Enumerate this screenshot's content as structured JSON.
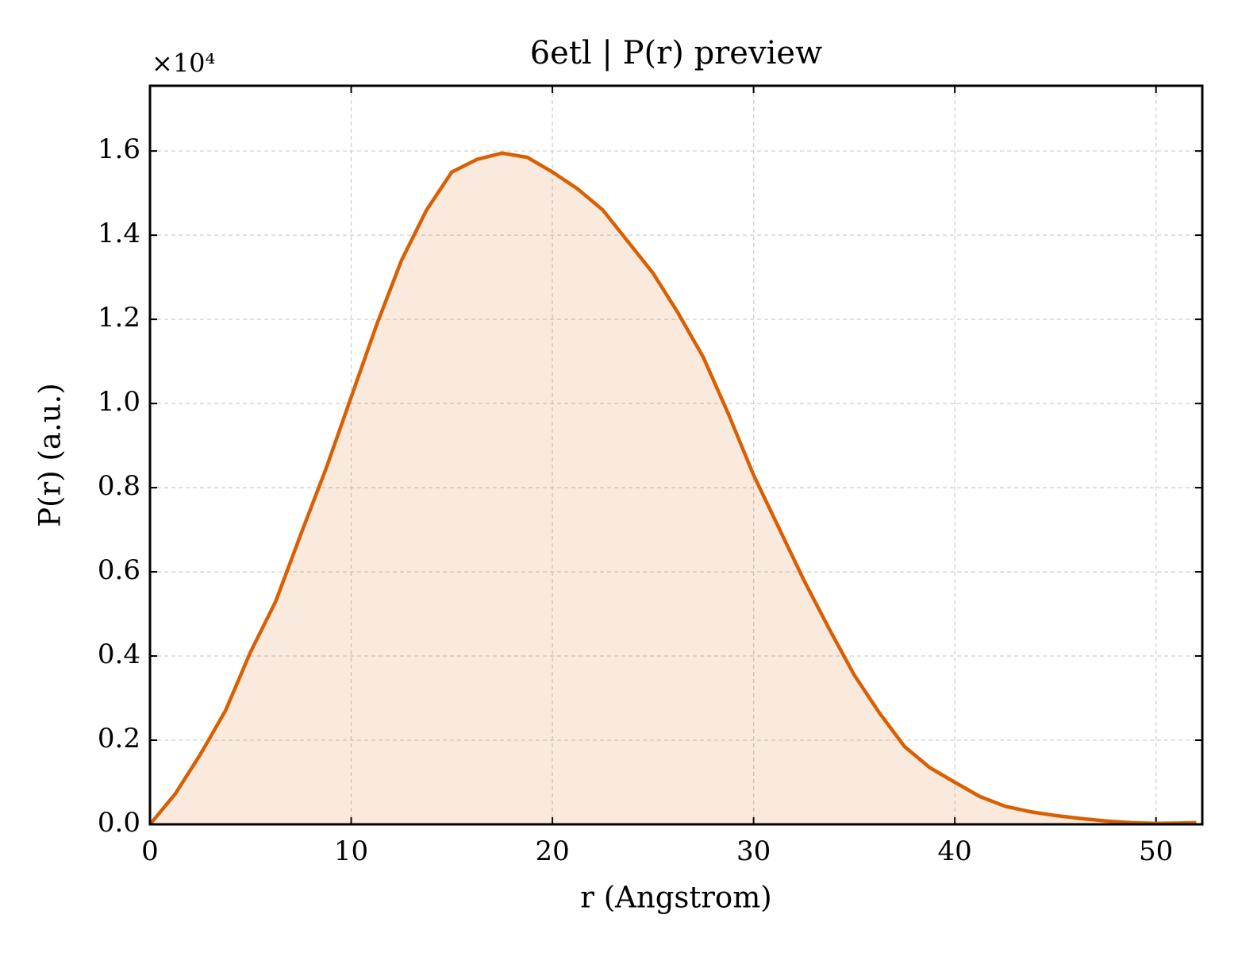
{
  "chart_data": {
    "type": "line",
    "title": "6etl | P(r) preview",
    "xlabel": "r (Angstrom)",
    "ylabel": "P(r) (a.u.)",
    "y_offset_label": "×10⁴",
    "x": [
      0,
      1.25,
      2.5,
      3.75,
      5,
      6.25,
      7.5,
      8.75,
      10,
      11.25,
      12.5,
      13.75,
      15,
      16.25,
      17.5,
      18.75,
      20,
      21.25,
      22.5,
      23.75,
      25,
      26.25,
      27.5,
      28.75,
      30,
      31.25,
      32.5,
      33.75,
      35,
      36.25,
      37.5,
      38.75,
      40,
      41.25,
      42.5,
      43.75,
      45,
      46.25,
      47.5,
      48.75,
      50,
      51.25,
      52
    ],
    "series": [
      {
        "name": "P(r)",
        "color": "#d95f02",
        "fill": true,
        "values": [
          0,
          0.072,
          0.166,
          0.27,
          0.41,
          0.53,
          0.69,
          0.845,
          1.015,
          1.185,
          1.34,
          1.46,
          1.55,
          1.58,
          1.595,
          1.585,
          1.55,
          1.51,
          1.46,
          1.385,
          1.31,
          1.215,
          1.11,
          0.975,
          0.83,
          0.705,
          0.58,
          0.465,
          0.355,
          0.265,
          0.185,
          0.135,
          0.1,
          0.066,
          0.043,
          0.03,
          0.021,
          0.014,
          0.008,
          0.004,
          0.002,
          0.003,
          0.004
        ]
      }
    ],
    "xlim": [
      0,
      52.3
    ],
    "xticks": [
      0,
      10,
      20,
      30,
      40,
      50
    ],
    "ylim": [
      0,
      1.755
    ],
    "yticks": [
      {
        "value": 0,
        "label": "0.0"
      },
      0.2,
      0.4,
      0.6,
      0.8,
      {
        "value": 1,
        "label": "1.0"
      },
      1.2,
      1.4,
      1.6
    ],
    "grid": true
  }
}
